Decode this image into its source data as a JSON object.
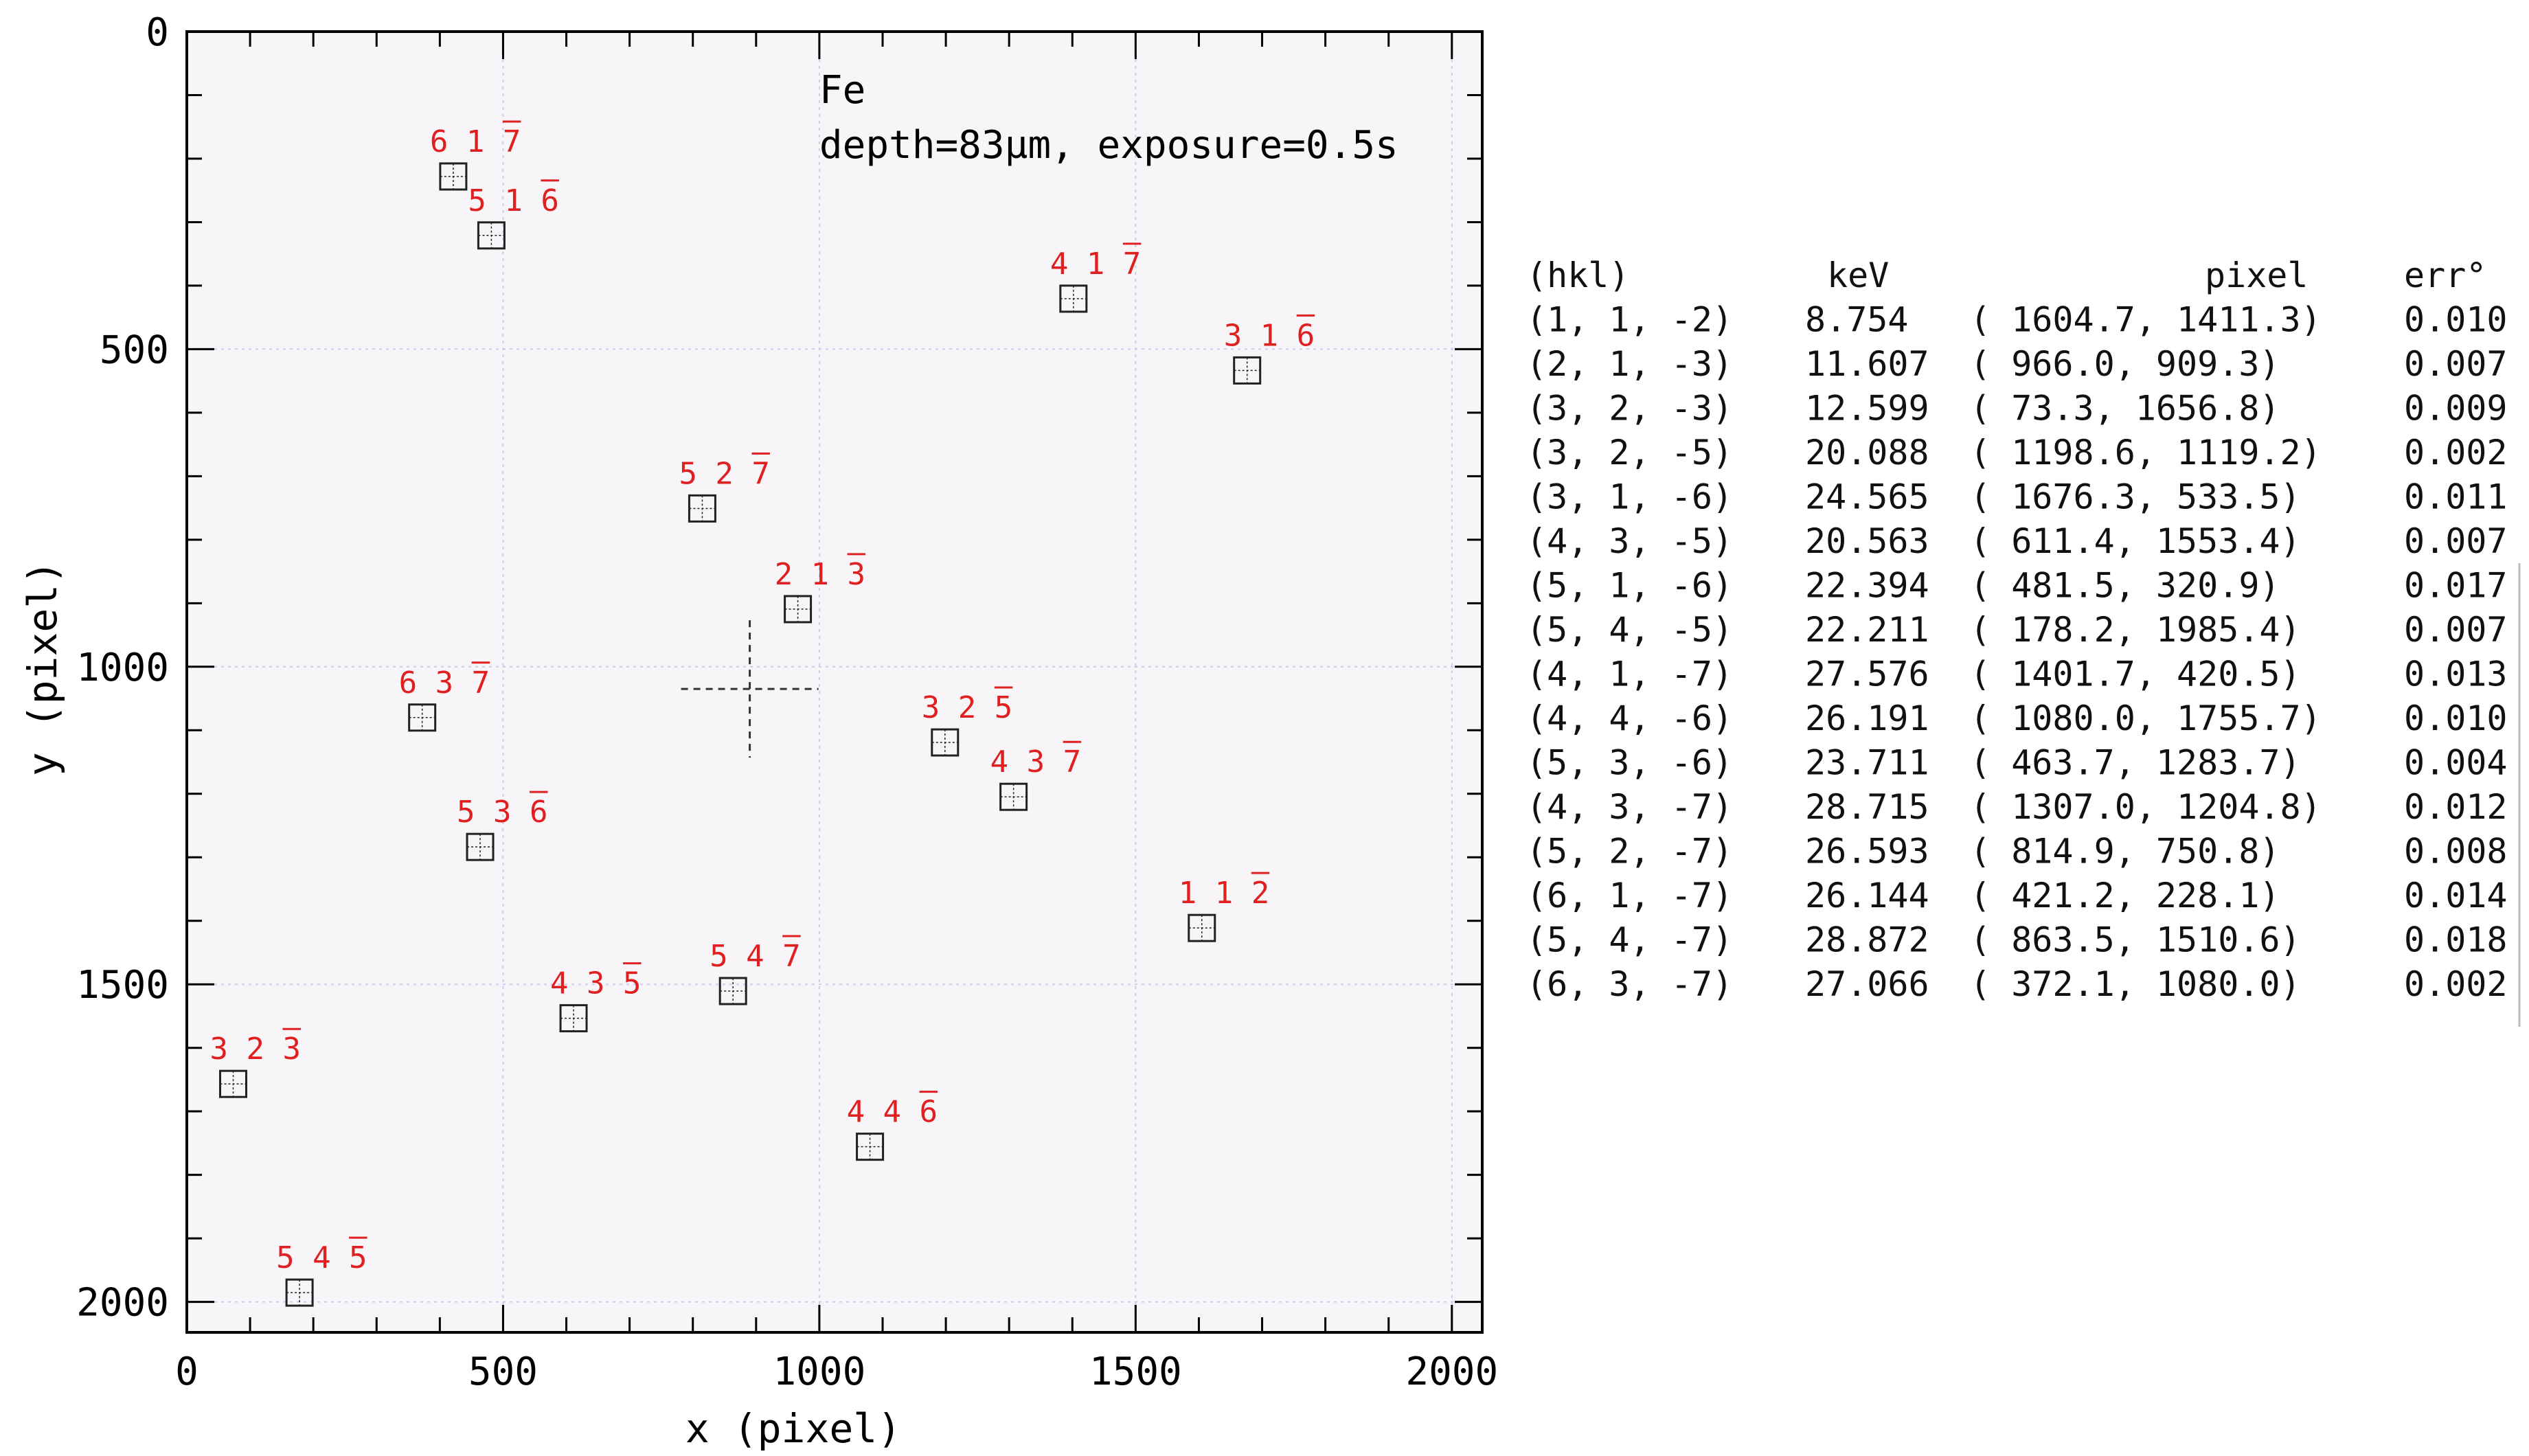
{
  "chart_data": {
    "type": "scatter",
    "title": "",
    "annotation_lines": [
      "Fe",
      "depth=83μm, exposure=0.5s"
    ],
    "xlabel": "x  (pixel)",
    "ylabel": "y  (pixel)",
    "xlim": [
      0,
      2048
    ],
    "ylim": [
      2048,
      0
    ],
    "y_inverted": true,
    "xticks": [
      0,
      500,
      1000,
      1500,
      2000
    ],
    "yticks": [
      0,
      500,
      1000,
      1500,
      2000
    ],
    "grid": true,
    "center_marker": {
      "x": 890,
      "y": 1035
    },
    "colors": {
      "label": "#e02020",
      "marker": "#222222",
      "grid": "#ccccee",
      "plot_bg": "#f7f5f8"
    },
    "points": [
      {
        "label": "1 1 2",
        "bar": [
          false,
          false,
          true
        ],
        "x": 1604.7,
        "y": 1411.3
      },
      {
        "label": "2 1 3",
        "bar": [
          false,
          false,
          true
        ],
        "x": 966.0,
        "y": 909.3
      },
      {
        "label": "3 2 3",
        "bar": [
          false,
          false,
          true
        ],
        "x": 73.3,
        "y": 1656.8
      },
      {
        "label": "3 2 5",
        "bar": [
          false,
          false,
          true
        ],
        "x": 1198.6,
        "y": 1119.2
      },
      {
        "label": "3 1 6",
        "bar": [
          false,
          false,
          true
        ],
        "x": 1676.3,
        "y": 533.5
      },
      {
        "label": "4 3 5",
        "bar": [
          false,
          false,
          true
        ],
        "x": 611.4,
        "y": 1553.4
      },
      {
        "label": "5 1 6",
        "bar": [
          false,
          false,
          true
        ],
        "x": 481.5,
        "y": 320.9
      },
      {
        "label": "5 4 5",
        "bar": [
          false,
          false,
          true
        ],
        "x": 178.2,
        "y": 1985.4
      },
      {
        "label": "4 1 7",
        "bar": [
          false,
          false,
          true
        ],
        "x": 1401.7,
        "y": 420.5
      },
      {
        "label": "4 4 6",
        "bar": [
          false,
          false,
          true
        ],
        "x": 1080.0,
        "y": 1755.7
      },
      {
        "label": "5 3 6",
        "bar": [
          false,
          false,
          true
        ],
        "x": 463.7,
        "y": 1283.7
      },
      {
        "label": "4 3 7",
        "bar": [
          false,
          false,
          true
        ],
        "x": 1307.0,
        "y": 1204.8
      },
      {
        "label": "5 2 7",
        "bar": [
          false,
          false,
          true
        ],
        "x": 814.9,
        "y": 750.8
      },
      {
        "label": "6 1 7",
        "bar": [
          false,
          false,
          true
        ],
        "x": 421.2,
        "y": 228.1
      },
      {
        "label": "5 4 7",
        "bar": [
          false,
          false,
          true
        ],
        "x": 863.5,
        "y": 1510.6
      },
      {
        "label": "6 3 7",
        "bar": [
          false,
          false,
          true
        ],
        "x": 372.1,
        "y": 1080.0
      }
    ]
  },
  "table": {
    "headers": [
      "(hkl)",
      "keV",
      "pixel",
      "err°"
    ],
    "rows": [
      [
        "(1, 1, -2)",
        "8.754",
        "( 1604.7,   1411.3)",
        "0.010"
      ],
      [
        "(2, 1, -3)",
        "11.607",
        "( 966.0,   909.3)",
        "0.007"
      ],
      [
        "(3, 2, -3)",
        "12.599",
        "(   73.3,   1656.8)",
        "0.009"
      ],
      [
        "(3, 2, -5)",
        "20.088",
        "( 1198.6,   1119.2)",
        "0.002"
      ],
      [
        "(3, 1, -6)",
        "24.565",
        "( 1676.3,   533.5)",
        "0.011"
      ],
      [
        "(4, 3, -5)",
        "20.563",
        "( 611.4,   1553.4)",
        "0.007"
      ],
      [
        "(5, 1, -6)",
        "22.394",
        "( 481.5,   320.9)",
        "0.017"
      ],
      [
        "(5, 4, -5)",
        "22.211",
        "( 178.2,   1985.4)",
        "0.007"
      ],
      [
        "(4, 1, -7)",
        "27.576",
        "( 1401.7,   420.5)",
        "0.013"
      ],
      [
        "(4, 4, -6)",
        "26.191",
        "( 1080.0,   1755.7)",
        "0.010"
      ],
      [
        "(5, 3, -6)",
        "23.711",
        "( 463.7,   1283.7)",
        "0.004"
      ],
      [
        "(4, 3, -7)",
        "28.715",
        "( 1307.0,   1204.8)",
        "0.012"
      ],
      [
        "(5, 2, -7)",
        "26.593",
        "( 814.9,   750.8)",
        "0.008"
      ],
      [
        "(6, 1, -7)",
        "26.144",
        "( 421.2,   228.1)",
        "0.014"
      ],
      [
        "(5, 4, -7)",
        "28.872",
        "( 863.5,   1510.6)",
        "0.018"
      ],
      [
        "(6, 3, -7)",
        "27.066",
        "( 372.1,   1080.0)",
        "0.002"
      ]
    ]
  }
}
